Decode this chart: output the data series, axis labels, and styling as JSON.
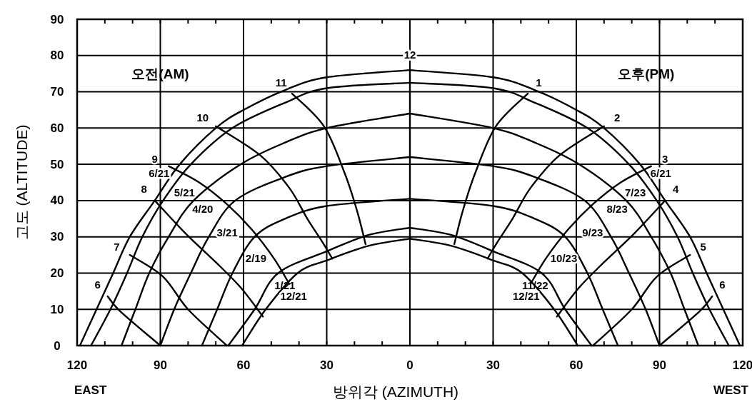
{
  "chart_data": {
    "type": "line",
    "ylabel": "고도 (ALTITUDE)",
    "xlabel": "방위각  (AZIMUTH)",
    "xlim": [
      -120,
      120
    ],
    "xticks": [
      {
        "value": -120,
        "label": "120"
      },
      {
        "value": -110,
        "label": null
      },
      {
        "value": -100,
        "label": null
      },
      {
        "value": -90,
        "label": "90"
      },
      {
        "value": -80,
        "label": null
      },
      {
        "value": -70,
        "label": null
      },
      {
        "value": -60,
        "label": "60"
      },
      {
        "value": -50,
        "label": null
      },
      {
        "value": -40,
        "label": null
      },
      {
        "value": -30,
        "label": "30"
      },
      {
        "value": -20,
        "label": null
      },
      {
        "value": -10,
        "label": null
      },
      0,
      {
        "value": 10,
        "label": null
      },
      {
        "value": 20,
        "label": null
      },
      30,
      {
        "value": 40,
        "label": null
      },
      {
        "value": 50,
        "label": null
      },
      60,
      {
        "value": 70,
        "label": null
      },
      {
        "value": 80,
        "label": null
      },
      90,
      {
        "value": 100,
        "label": null
      },
      {
        "value": 110,
        "label": null
      },
      120
    ],
    "ylim": [
      0,
      90
    ],
    "yticks": [
      0,
      10,
      20,
      30,
      40,
      50,
      60,
      70,
      80,
      90
    ],
    "grid": true,
    "marker": "none",
    "line_style": "solid",
    "series": [
      {
        "name": "6/21",
        "color": "#000000",
        "x": [
          -119,
          -113,
          -107,
          -101,
          -92,
          -83,
          -70,
          -60,
          -45,
          -30,
          0
        ],
        "values": [
          0,
          10,
          20,
          30,
          40,
          50,
          60,
          65,
          70.5,
          74,
          76
        ]
      },
      {
        "name": "5/21",
        "color": "#000000",
        "x": [
          -115,
          -108,
          -102,
          -96.5,
          -89,
          -79,
          -64,
          -45,
          -30,
          0
        ],
        "values": [
          0,
          10,
          20,
          30,
          40,
          50,
          60,
          67,
          71,
          72.5
        ]
      },
      {
        "name": "4/20",
        "color": "#000000",
        "x": [
          -104,
          -99,
          -94,
          -87,
          -78,
          -61,
          -45,
          -30,
          0
        ],
        "values": [
          0,
          10,
          20,
          30,
          40,
          50,
          56,
          60,
          64
        ]
      },
      {
        "name": "3/21",
        "color": "#000000",
        "x": [
          -90,
          -85,
          -79,
          -72.5,
          -63,
          -45,
          -30,
          0
        ],
        "values": [
          0,
          10,
          20,
          30,
          40,
          46.5,
          49.5,
          52
        ]
      },
      {
        "name": "2/19",
        "color": "#000000",
        "x": [
          -75,
          -69.5,
          -64,
          -56,
          -45,
          -30,
          0
        ],
        "values": [
          0,
          10,
          20,
          30,
          35,
          38.5,
          40.5
        ]
      },
      {
        "name": "1/21",
        "color": "#000000",
        "x": [
          -65.5,
          -56,
          -47.5,
          -30,
          -15,
          0
        ],
        "values": [
          0,
          10,
          20,
          26,
          30.5,
          32.5
        ]
      },
      {
        "name": "12/21",
        "color": "#000000",
        "x": [
          -60.5,
          -52,
          -40.5,
          -30,
          -15,
          0
        ],
        "values": [
          0,
          10,
          20,
          23.5,
          27.5,
          29.5
        ]
      },
      {
        "name": "6/21",
        "color": "#000000",
        "x": [
          119,
          113,
          107,
          101,
          92,
          83,
          70,
          60,
          45,
          30,
          0
        ],
        "values": [
          0,
          10,
          20,
          30,
          40,
          50,
          60,
          65,
          70.5,
          74,
          76
        ]
      },
      {
        "name": "7/23",
        "color": "#000000",
        "x": [
          115,
          108,
          102,
          96.5,
          89,
          79,
          64,
          45,
          30,
          0
        ],
        "values": [
          0,
          10,
          20,
          30,
          40,
          50,
          60,
          67,
          71,
          72.5
        ]
      },
      {
        "name": "8/23",
        "color": "#000000",
        "x": [
          104,
          99,
          94,
          87,
          78,
          61,
          45,
          30,
          0
        ],
        "values": [
          0,
          10,
          20,
          30,
          40,
          50,
          56,
          60,
          64
        ]
      },
      {
        "name": "9/23",
        "color": "#000000",
        "x": [
          90,
          85,
          79,
          72.5,
          63,
          45,
          30,
          0
        ],
        "values": [
          0,
          10,
          20,
          30,
          40,
          46.5,
          49.5,
          52
        ]
      },
      {
        "name": "10/23",
        "color": "#000000",
        "x": [
          75,
          69.5,
          64,
          56,
          45,
          30,
          0
        ],
        "values": [
          0,
          10,
          20,
          30,
          35,
          38.5,
          40.5
        ]
      },
      {
        "name": "11/22",
        "color": "#000000",
        "x": [
          65.5,
          56,
          47.5,
          30,
          15,
          0
        ],
        "values": [
          0,
          10,
          20,
          26,
          30.5,
          32.5
        ]
      },
      {
        "name": "12/21",
        "color": "#000000",
        "x": [
          60.5,
          52,
          40.5,
          30,
          15,
          0
        ],
        "values": [
          0,
          10,
          20,
          23.5,
          27.5,
          29.5
        ]
      },
      {
        "name": "6",
        "color": "#000000",
        "x": [
          -109,
          -104.5,
          -90
        ],
        "values": [
          13.6,
          9.5,
          0
        ]
      },
      {
        "name": "7",
        "color": "#000000",
        "x": [
          -101,
          -89,
          -80,
          -66
        ],
        "values": [
          25,
          19,
          10,
          0
        ]
      },
      {
        "name": "8",
        "color": "#000000",
        "x": [
          -92,
          -81,
          -70,
          -61,
          -53
        ],
        "values": [
          40,
          31,
          23,
          16,
          8
        ]
      },
      {
        "name": "9",
        "color": "#000000",
        "x": [
          -87,
          -76,
          -66,
          -57,
          -49,
          -43.5
        ],
        "values": [
          49.5,
          45,
          39,
          32,
          24,
          17
        ]
      },
      {
        "name": "10",
        "color": "#000000",
        "x": [
          -70,
          -54,
          -43.5,
          -37,
          -31.5,
          -28
        ],
        "values": [
          60.5,
          52.5,
          43.5,
          35,
          28.5,
          24
        ]
      },
      {
        "name": "11",
        "color": "#000000",
        "x": [
          -42.5,
          -31,
          -23.5,
          -19,
          -16
        ],
        "values": [
          69.5,
          60.5,
          47.5,
          37,
          28
        ]
      },
      {
        "name": "12",
        "color": "#000000",
        "x": [
          0,
          0
        ],
        "values": [
          76,
          29.5
        ]
      },
      {
        "name": "1",
        "color": "#000000",
        "x": [
          42.5,
          31,
          23.5,
          19,
          16
        ],
        "values": [
          69.5,
          60.5,
          47.5,
          37,
          28
        ]
      },
      {
        "name": "2",
        "color": "#000000",
        "x": [
          70,
          54,
          43.5,
          37,
          31.5,
          28
        ],
        "values": [
          60.5,
          52.5,
          43.5,
          35,
          28.5,
          24
        ]
      },
      {
        "name": "3",
        "color": "#000000",
        "x": [
          87,
          76,
          66,
          57,
          49,
          43.5
        ],
        "values": [
          49.5,
          45,
          39,
          32,
          24,
          17
        ]
      },
      {
        "name": "4",
        "color": "#000000",
        "x": [
          92,
          81,
          70,
          61,
          53
        ],
        "values": [
          40,
          31,
          23,
          16,
          8
        ]
      },
      {
        "name": "5",
        "color": "#000000",
        "x": [
          101,
          89,
          80,
          66
        ],
        "values": [
          25,
          19,
          10,
          0
        ]
      },
      {
        "name": "6",
        "color": "#000000",
        "x": [
          109,
          104.5,
          90
        ],
        "values": [
          13.6,
          9.5,
          0
        ]
      }
    ],
    "annotations": [
      "EAST",
      "WEST",
      "오전(AM)",
      "오후(PM)"
    ]
  }
}
